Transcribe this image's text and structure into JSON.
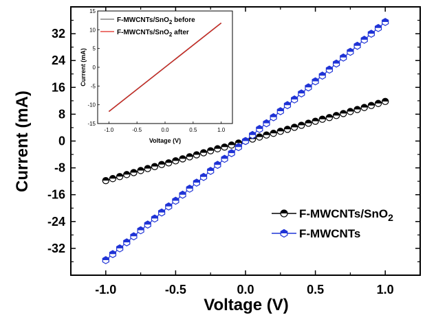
{
  "chart_data": [
    {
      "type": "line",
      "xlabel": "Voltage (V)",
      "ylabel": "Current (mA)",
      "xlim": [
        -1.25,
        1.25
      ],
      "ylim": [
        -40,
        40
      ],
      "xticks": [
        "-1.0",
        "-0.5",
        "0.0",
        "0.5",
        "1.0"
      ],
      "yticks": [
        "32",
        "24",
        "16",
        "8",
        "0",
        "-8",
        "-16",
        "-24",
        "-32"
      ],
      "legend_position": "bottom-right",
      "series": [
        {
          "name": "F-MWCNTs/SnO",
          "name_subscript": "2",
          "color": "#000000",
          "fill": "#ffffff",
          "marker": "half-filled-circle",
          "x": [
            -1.0,
            -0.95,
            -0.9,
            -0.85,
            -0.8,
            -0.75,
            -0.7,
            -0.65,
            -0.6,
            -0.55,
            -0.5,
            -0.45,
            -0.4,
            -0.35,
            -0.3,
            -0.25,
            -0.2,
            -0.15,
            -0.1,
            -0.05,
            0.0,
            0.05,
            0.1,
            0.15,
            0.2,
            0.25,
            0.3,
            0.35,
            0.4,
            0.45,
            0.5,
            0.55,
            0.6,
            0.65,
            0.7,
            0.75,
            0.8,
            0.85,
            0.9,
            0.95,
            1.0
          ],
          "y": [
            -11.8,
            -11.2,
            -10.6,
            -10.0,
            -9.4,
            -8.8,
            -8.2,
            -7.6,
            -7.0,
            -6.5,
            -5.9,
            -5.3,
            -4.7,
            -4.1,
            -3.5,
            -2.9,
            -2.3,
            -1.8,
            -1.2,
            -0.6,
            0.0,
            0.6,
            1.2,
            1.8,
            2.3,
            2.9,
            3.5,
            4.1,
            4.7,
            5.3,
            5.9,
            6.5,
            7.0,
            7.6,
            8.2,
            8.8,
            9.4,
            10.0,
            10.6,
            11.2,
            11.8
          ]
        },
        {
          "name": "F-MWCNTs",
          "color": "#1f33d6",
          "fill": "#ffffff",
          "marker": "half-filled-hexagon",
          "x": [
            -1.0,
            -0.95,
            -0.9,
            -0.85,
            -0.8,
            -0.75,
            -0.7,
            -0.65,
            -0.6,
            -0.55,
            -0.5,
            -0.45,
            -0.4,
            -0.35,
            -0.3,
            -0.25,
            -0.2,
            -0.15,
            -0.1,
            -0.05,
            0.0,
            0.05,
            0.1,
            0.15,
            0.2,
            0.25,
            0.3,
            0.35,
            0.4,
            0.45,
            0.5,
            0.55,
            0.6,
            0.65,
            0.7,
            0.75,
            0.8,
            0.85,
            0.9,
            0.95,
            1.0
          ],
          "y": [
            -35.5,
            -33.7,
            -32.0,
            -30.2,
            -28.4,
            -26.6,
            -24.9,
            -23.1,
            -21.3,
            -19.5,
            -17.8,
            -16.0,
            -14.2,
            -12.4,
            -10.7,
            -8.9,
            -7.1,
            -5.3,
            -3.6,
            -1.8,
            0.0,
            1.8,
            3.6,
            5.3,
            7.1,
            8.9,
            10.7,
            12.4,
            14.2,
            16.0,
            17.8,
            19.5,
            21.3,
            23.1,
            24.9,
            26.6,
            28.4,
            30.2,
            32.0,
            33.7,
            35.5
          ]
        }
      ]
    },
    {
      "type": "line",
      "role": "inset",
      "xlabel": "Voltage (V)",
      "ylabel": "Current (mA)",
      "xlim": [
        -1.2,
        1.2
      ],
      "ylim": [
        -15,
        15
      ],
      "xticks": [
        "-1.0",
        "-0.5",
        "0.0",
        "0.5",
        "1.0"
      ],
      "yticks": [
        "15",
        "10",
        "5",
        "0",
        "-5",
        "-10",
        "-15"
      ],
      "legend_position": "top-left",
      "series": [
        {
          "name": "F-MWCNTs/SnO",
          "name_subscript": "2",
          "name_suffix": " before",
          "color": "#444444",
          "x": [
            -1.0,
            1.0
          ],
          "y": [
            -11.8,
            11.8
          ]
        },
        {
          "name": "F-MWCNTs/SnO",
          "name_subscript": "2",
          "name_suffix": " after",
          "color": "#e0241c",
          "x": [
            -1.0,
            1.0
          ],
          "y": [
            -11.8,
            11.8
          ]
        }
      ]
    }
  ]
}
